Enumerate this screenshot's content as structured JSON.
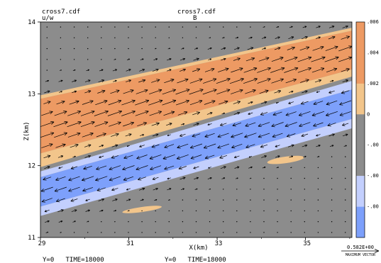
{
  "header": {
    "left_file": "cross7.cdf",
    "left_var": "u/w",
    "center_file": "cross7.cdf",
    "center_var": "B"
  },
  "footer": {
    "left": "Y=0   TIME=18000",
    "center": "Y=0   TIME=18000"
  },
  "vector_key": {
    "value": "0.582E+00",
    "label": "MAXIMUM VECTOR"
  },
  "colors": {
    "gray": "#8c8c8c",
    "orange_dark": "#ed9a63",
    "orange_light": "#f2c58b",
    "blue_light": "#c3cffd",
    "blue_dark": "#7da0fb"
  },
  "chart_data": {
    "type": "heatmap",
    "title": "",
    "xlabel": "X(km)",
    "ylabel": "Z(km)",
    "xlim": [
      29,
      36.05
    ],
    "ylim": [
      11,
      14
    ],
    "x_ticks": [
      "29",
      "31",
      "33",
      "35"
    ],
    "y_ticks": [
      "11",
      "12",
      "13",
      "14"
    ],
    "colorbar": {
      "levels": [
        ".006",
        ".004",
        ".002",
        "0",
        "-.00",
        "-.00",
        "-.00"
      ],
      "fills": [
        "#ed9a63",
        "#ed9a63",
        "#f2c58b",
        "#8c8c8c",
        "#8c8c8c",
        "#c3cffd",
        "#7da0fb"
      ]
    },
    "bands": [
      {
        "name": "orange-dark",
        "color": "#ed9a63",
        "upper": [
          [
            29,
            12.93
          ],
          [
            36.05,
            13.88
          ]
        ],
        "lower": [
          [
            29,
            12.17
          ],
          [
            36.05,
            13.34
          ]
        ]
      },
      {
        "name": "orange-light-upper",
        "color": "#f2c58b",
        "upper": [
          [
            29,
            12.98
          ],
          [
            36.05,
            13.92
          ]
        ],
        "lower": [
          [
            29,
            12.93
          ],
          [
            36.05,
            13.88
          ]
        ]
      },
      {
        "name": "orange-light-lower",
        "color": "#f2c58b",
        "upper": [
          [
            29,
            12.17
          ],
          [
            36.05,
            13.34
          ]
        ],
        "lower": [
          [
            29,
            11.98
          ],
          [
            36.05,
            13.24
          ]
        ]
      },
      {
        "name": "blue-dark",
        "color": "#7da0fb",
        "upper": [
          [
            29,
            11.84
          ],
          [
            36.05,
            13.06
          ]
        ],
        "lower": [
          [
            29,
            11.43
          ],
          [
            36.05,
            12.65
          ]
        ]
      },
      {
        "name": "blue-light-upper",
        "color": "#c3cffd",
        "upper": [
          [
            29,
            11.92
          ],
          [
            36.05,
            13.18
          ]
        ],
        "lower": [
          [
            29,
            11.84
          ],
          [
            36.05,
            13.06
          ]
        ]
      },
      {
        "name": "blue-light-lower",
        "color": "#c3cffd",
        "upper": [
          [
            29,
            11.43
          ],
          [
            36.05,
            12.65
          ]
        ],
        "lower": [
          [
            29,
            11.3
          ],
          [
            36.05,
            12.52
          ]
        ]
      }
    ],
    "blobs": [
      {
        "color": "#f2c58b",
        "cx": 34.55,
        "cy": 12.08,
        "rx": 0.42,
        "ry": 0.045,
        "angle": 8
      },
      {
        "color": "#f2c58b",
        "cx": 31.3,
        "cy": 11.39,
        "rx": 0.45,
        "ry": 0.035,
        "angle": 8
      }
    ],
    "vectors": {
      "rows": 20,
      "cols": 23,
      "strong_upper": [
        11.98,
        12.98
      ],
      "strong_lower": [
        11.3,
        11.92
      ]
    }
  }
}
